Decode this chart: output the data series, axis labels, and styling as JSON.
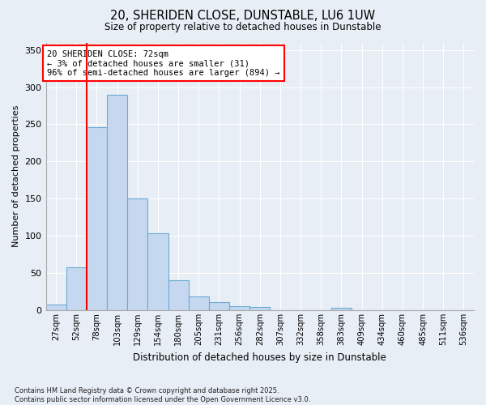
{
  "title_line1": "20, SHERIDEN CLOSE, DUNSTABLE, LU6 1UW",
  "title_line2": "Size of property relative to detached houses in Dunstable",
  "xlabel": "Distribution of detached houses by size in Dunstable",
  "ylabel": "Number of detached properties",
  "categories": [
    "27sqm",
    "52sqm",
    "78sqm",
    "103sqm",
    "129sqm",
    "154sqm",
    "180sqm",
    "205sqm",
    "231sqm",
    "256sqm",
    "282sqm",
    "307sqm",
    "332sqm",
    "358sqm",
    "383sqm",
    "409sqm",
    "434sqm",
    "460sqm",
    "485sqm",
    "511sqm",
    "536sqm"
  ],
  "values": [
    8,
    58,
    246,
    290,
    150,
    103,
    40,
    19,
    11,
    6,
    4,
    0,
    0,
    0,
    3,
    0,
    0,
    0,
    0,
    0,
    0
  ],
  "bar_color": "#c5d8ef",
  "bar_edge_color": "#6aaad4",
  "marker_label": "20 SHERIDEN CLOSE: 72sqm\n← 3% of detached houses are smaller (31)\n96% of semi-detached houses are larger (894) →",
  "annotation_box_facecolor": "white",
  "annotation_box_edge": "red",
  "vline_color": "red",
  "vline_x": 2.0,
  "ylim": [
    0,
    360
  ],
  "yticks": [
    0,
    50,
    100,
    150,
    200,
    250,
    300,
    350
  ],
  "bg_color": "#e8eef5",
  "grid_color": "#ffffff",
  "footnote": "Contains HM Land Registry data © Crown copyright and database right 2025.\nContains public sector information licensed under the Open Government Licence v3.0."
}
